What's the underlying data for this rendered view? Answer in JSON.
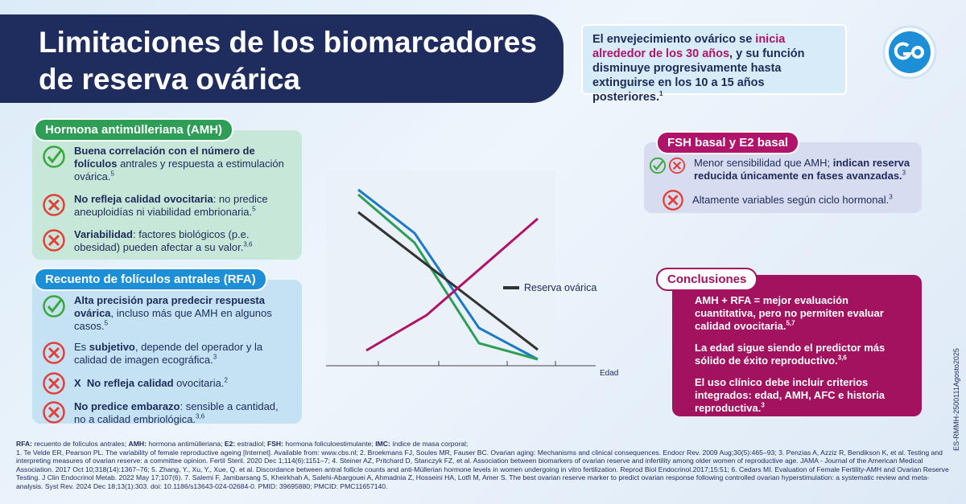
{
  "header": {
    "title": "Limitaciones de los biomarcadores de reserva ovárica"
  },
  "intro": [
    "El envejecimiento ovárico se ",
    "inicia alrededor de los 30 años",
    ", y su función disminuye progresivamente hasta extinguirse en los 10 a 15 años posteriores.",
    "1"
  ],
  "amh": {
    "label": "Hormona antimülleriana (AMH)",
    "items": [
      [
        "Buena correlación con el número de folículos",
        " antrales y respuesta a estimulación ovárica.",
        "5"
      ],
      [
        "No refleja calidad ovocitaria",
        ": no predice aneuploidías ni viabilidad embrionaria.",
        "5"
      ],
      [
        "Variabilidad",
        ": factores biológicos (p.e. obesidad) pueden afectar a su valor.",
        "3,6"
      ]
    ]
  },
  "rfa": {
    "label": "Recuento de folículos antrales (RFA)",
    "items": [
      [
        "Alta precisión para predecir respuesta ovárica",
        ", incluso más que AMH en algunos casos.",
        "5"
      ],
      [
        "Es ",
        "subjetivo",
        ", depende del operador y la calidad de imagen ecográfica.",
        "3"
      ],
      [
        "X  ",
        "No refleja calidad",
        " ovocitaria.",
        "2"
      ],
      [
        "No predice embarazo",
        ": sensible a cantidad, no a calidad embriológica.",
        "3,6"
      ]
    ]
  },
  "chart": {
    "legend": "Reserva ovárica",
    "x_label": "Edad"
  },
  "fsh": {
    "label": "FSH basal y E2 basal",
    "items": [
      [
        "Menor sensibilidad que AMH; ",
        "indican reserva reducida únicamente en fases avanzadas.",
        "3"
      ],
      [
        "Altamente variables",
        " según ciclo hormonal.",
        "3"
      ]
    ]
  },
  "conclusions": {
    "label": "Conclusiones",
    "items": [
      [
        "AMH + RFA = mejor evaluación cuantitativa, pero no permiten evaluar calidad ovocitaria.",
        "5,7"
      ],
      [
        "La edad sigue siendo el predictor más sólido de éxito reproductivo.",
        "3,6"
      ],
      [
        "El uso clínico debe incluir criterios integrados: edad, AMH, AFC e historia reproductiva.",
        "3"
      ]
    ]
  },
  "code": "ES-RMMH-2500111Agosto2025",
  "footer": {
    "abbreviations": [
      [
        "RFA:",
        " recuento de folículos antrales; "
      ],
      [
        "AMH:",
        " hormona antimülleriana; "
      ],
      [
        "E2:",
        " estradiol; "
      ],
      [
        "FSH:",
        " hormona foliculoestimulante; "
      ],
      [
        "IMC:",
        " índice de masa corporal;"
      ]
    ],
    "references": "1. Te Velde ER, Pearson PL. The variability of female reproductive ageing [Internet]. Available from: www.cbs.nl; 2. Broekmans FJ, Soules MR, Fauser BC. Ovarian aging: Mechanisms and clinical consequences. Endocr Rev. 2009 Aug;30(5):465–93; 3. Penzias A, Azziz R, Bendikson K, et al. Testing and interpreting measures of ovarian reserve: a committee opinion. Fertil Steril. 2020 Dec 1;114(6):1151–7; 4. Steiner AZ, Pritchard D, Stanczyk FZ, et al. Association between biomarkers of ovarian reserve and infertility among older women of reproductive age. JAMA - Journal of the American Medical Association. 2017 Oct 10;318(14):1367–76; 5. Zhang, Y., Xu, Y., Xue, Q. et al. Discordance between antral follicle counts and anti-Müllerian hormone levels in women undergoing in vitro fertilization. Reprod Biol Endocrinol.2017;15:51; 6. Cedars MI. Evaluation of Female Fertility-AMH and Ovarian Reserve Testing. J Clin Endocrinol Metab. 2022 May 17;107(6). 7. Salemi F, Jambarsang S, Kheirkhah A, Salehi-Abargouei A, Ahmadnia Z, Hosseini HA, Lotfi M, Amer S. The best ovarian reserve marker to predict ovarian response following controlled ovarian hyperstimulation: a systematic review and meta-analysis. Syst Rev. 2024 Dec 18;13(1):303. doi: 10.1186/s13643-024-02684-0. PMID: 39695880; PMCID: PMC11657140."
  }
}
